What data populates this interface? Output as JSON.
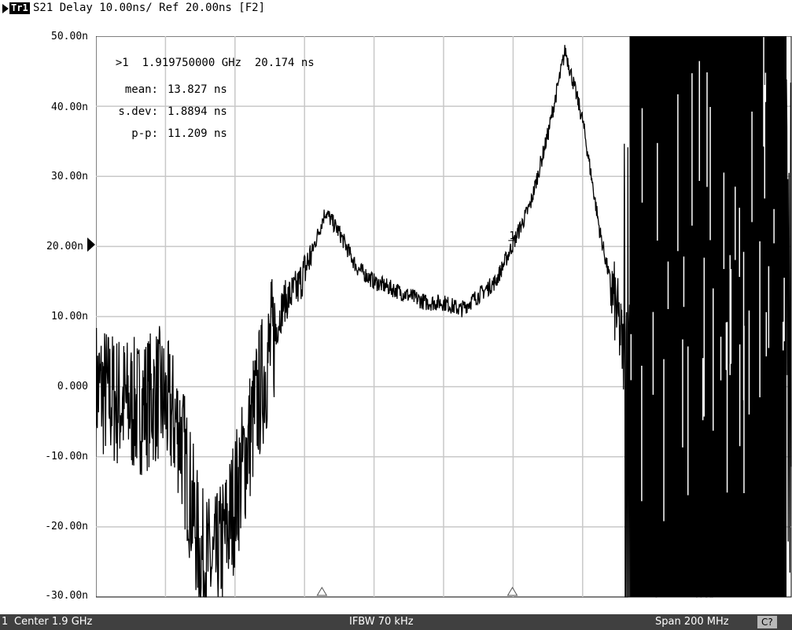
{
  "trace_header": {
    "trace_badge": "Tr1",
    "text": "S21 Delay 10.00ns/ Ref 20.00ns [F2]"
  },
  "y_axis": {
    "tick_labels": [
      "50.00n",
      "40.00n",
      "30.00n",
      "20.00n",
      "10.00n",
      "0.000",
      "-10.00n",
      "-20.00n",
      "-30.00n"
    ]
  },
  "marker_readout": {
    "marker": ">1",
    "frequency": "1.919750000 GHz",
    "value": "20.174 ns"
  },
  "statistics": {
    "mean_label": "mean:",
    "mean_value": "13.827 ns",
    "sdev_label": "s.dev:",
    "sdev_value": "1.8894 ns",
    "pp_label": "p-p:",
    "pp_value": "11.209 ns"
  },
  "marker_flag": "1",
  "status_bar": {
    "channel": "1",
    "center": "Center 1.9 GHz",
    "ifbw": "IFBW 70 kHz",
    "span": "Span 200 MHz",
    "cal": "C?"
  },
  "colors": {
    "trace": "#000000",
    "grid": "#c8c8c8",
    "status_bg": "#404040"
  },
  "chart_data": {
    "type": "line",
    "title": "S21 Delay 10.00ns/ Ref 20.00ns [F2]",
    "xlabel": "",
    "ylabel": "",
    "xlim": [
      1.8,
      2.0
    ],
    "ylim": [
      -30,
      50
    ],
    "x_unit": "GHz",
    "y_unit": "ns",
    "grid": true,
    "reference_level": 20,
    "series": [
      {
        "x": [
          1.8,
          1.806,
          1.812,
          1.818,
          1.824,
          1.83,
          1.834,
          1.838,
          1.842,
          1.846,
          1.85,
          1.854,
          1.858,
          1.862,
          1.866,
          1.87,
          1.875,
          1.88,
          1.885,
          1.89,
          1.895,
          1.9,
          1.905,
          1.91,
          1.915,
          1.9198,
          1.925,
          1.93,
          1.935,
          1.94,
          1.945,
          1.95,
          1.955,
          1.96,
          1.965,
          1.97,
          1.975,
          1.98,
          1.985,
          1.99,
          1.995,
          2.0
        ],
        "values": [
          0,
          -2,
          -3,
          -1,
          -6,
          -24,
          -26,
          -20,
          -12,
          -3,
          5,
          12,
          14,
          19,
          25,
          22,
          17,
          15,
          14,
          13,
          12,
          12,
          11,
          13,
          15,
          20.174,
          26,
          36,
          48,
          38,
          22,
          10,
          -5,
          5,
          15,
          0,
          -10,
          10,
          5,
          -5,
          8,
          0
        ]
      }
    ],
    "markers": [
      {
        "label": "1",
        "x": 1.91975,
        "value": 20.174
      }
    ],
    "stimulus_markers_x": [
      1.865,
      1.9198
    ]
  }
}
